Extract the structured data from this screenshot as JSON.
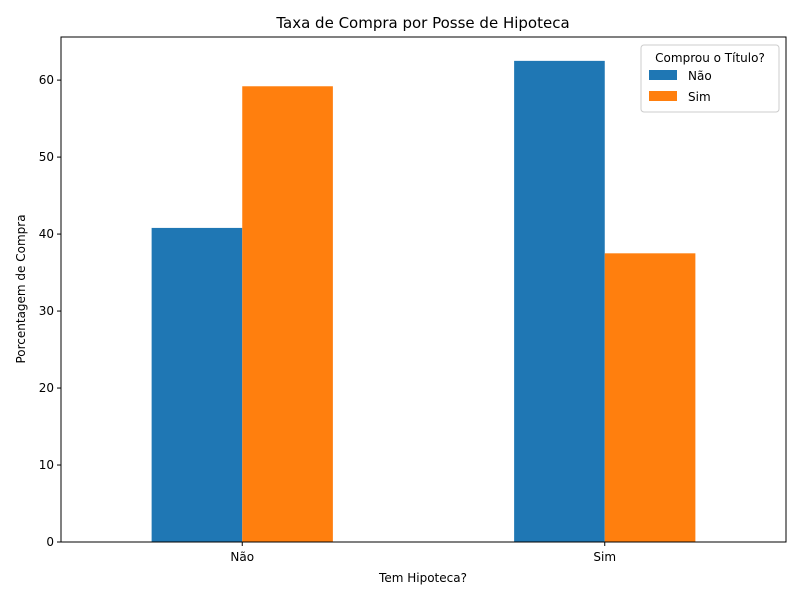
{
  "chart_data": {
    "type": "bar",
    "title": "Taxa de Compra por Posse de Hipoteca",
    "xlabel": "Tem Hipoteca?",
    "ylabel": "Porcentagem de Compra",
    "categories": [
      "Não",
      "Sim"
    ],
    "series": [
      {
        "name": "Não",
        "values": [
          40.8,
          62.5
        ],
        "color": "#1f77b4"
      },
      {
        "name": "Sim",
        "values": [
          59.2,
          37.5
        ],
        "color": "#ff7f0e"
      }
    ],
    "ylim": [
      0,
      65.6
    ],
    "yticks": [
      0,
      10,
      20,
      30,
      40,
      50,
      60
    ],
    "legend": {
      "title": "Comprou o Título?",
      "position": "top-right"
    },
    "grid": false
  }
}
